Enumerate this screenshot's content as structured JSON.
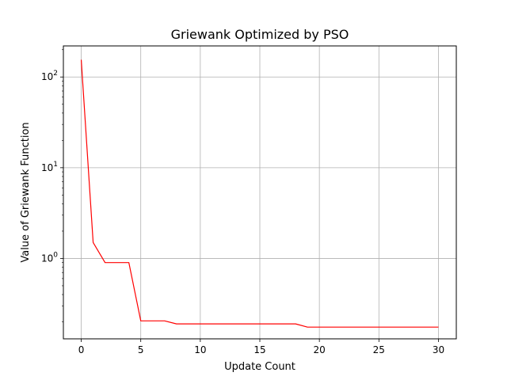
{
  "chart_data": {
    "type": "line",
    "title": "Griewank Optimized by PSO",
    "xlabel": "Update Count",
    "ylabel": "Value of Griewank Function",
    "yscale": "log",
    "xlim": [
      -1.5,
      31.5
    ],
    "ylim": [
      0.13,
      220
    ],
    "grid": true,
    "x_ticks": [
      0,
      5,
      10,
      15,
      20,
      25,
      30
    ],
    "x_tick_labels": [
      "0",
      "5",
      "10",
      "15",
      "20",
      "25",
      "30"
    ],
    "y_ticks": [
      1,
      10,
      100
    ],
    "y_tick_labels": [
      {
        "base": "10",
        "exp": "0"
      },
      {
        "base": "10",
        "exp": "1"
      },
      {
        "base": "10",
        "exp": "2"
      }
    ],
    "series": [
      {
        "color": "#ff0000",
        "x": [
          0,
          1,
          2,
          3,
          4,
          5,
          6,
          7,
          8,
          9,
          10,
          11,
          12,
          13,
          14,
          15,
          16,
          17,
          18,
          19,
          20,
          21,
          22,
          23,
          24,
          25,
          26,
          27,
          28,
          29,
          30
        ],
        "y": [
          155,
          1.5,
          0.9,
          0.9,
          0.9,
          0.205,
          0.205,
          0.205,
          0.19,
          0.19,
          0.19,
          0.19,
          0.19,
          0.19,
          0.19,
          0.19,
          0.19,
          0.19,
          0.19,
          0.175,
          0.175,
          0.175,
          0.175,
          0.175,
          0.175,
          0.175,
          0.175,
          0.175,
          0.175,
          0.175,
          0.175
        ]
      }
    ]
  }
}
